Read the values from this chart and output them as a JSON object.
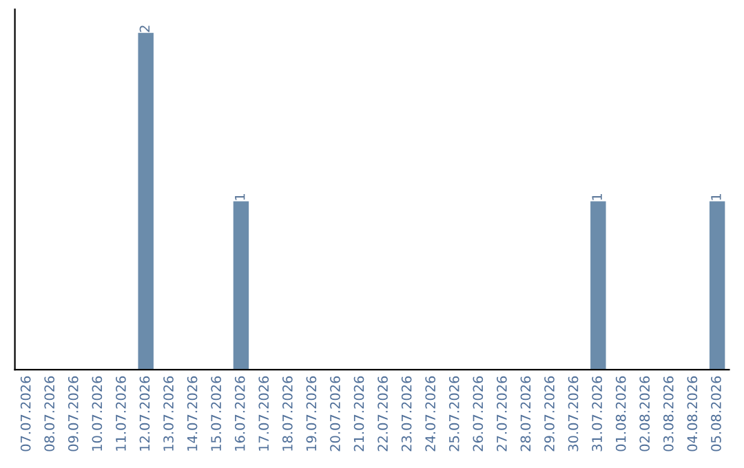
{
  "chart_data": {
    "type": "bar",
    "categories": [
      "07.07.2026",
      "08.07.2026",
      "09.07.2026",
      "10.07.2026",
      "11.07.2026",
      "12.07.2026",
      "13.07.2026",
      "14.07.2026",
      "15.07.2026",
      "16.07.2026",
      "17.07.2026",
      "18.07.2026",
      "19.07.2026",
      "20.07.2026",
      "21.07.2026",
      "22.07.2026",
      "23.07.2026",
      "24.07.2026",
      "25.07.2026",
      "26.07.2026",
      "27.07.2026",
      "28.07.2026",
      "29.07.2026",
      "30.07.2026",
      "31.07.2026",
      "01.08.2026",
      "02.08.2026",
      "03.08.2026",
      "04.08.2026",
      "05.08.2026"
    ],
    "values": [
      0,
      0,
      0,
      0,
      0,
      2,
      0,
      0,
      0,
      1,
      0,
      0,
      0,
      0,
      0,
      0,
      0,
      0,
      0,
      0,
      0,
      0,
      0,
      0,
      1,
      0,
      0,
      0,
      0,
      1
    ],
    "value_labels": [
      null,
      null,
      null,
      null,
      null,
      "2",
      null,
      null,
      null,
      "1",
      null,
      null,
      null,
      null,
      null,
      null,
      null,
      null,
      null,
      null,
      null,
      null,
      null,
      null,
      "1",
      null,
      null,
      null,
      null,
      "1"
    ],
    "color": "#6b8cab",
    "tick_labels": "x",
    "grid": false,
    "legend": false
  }
}
